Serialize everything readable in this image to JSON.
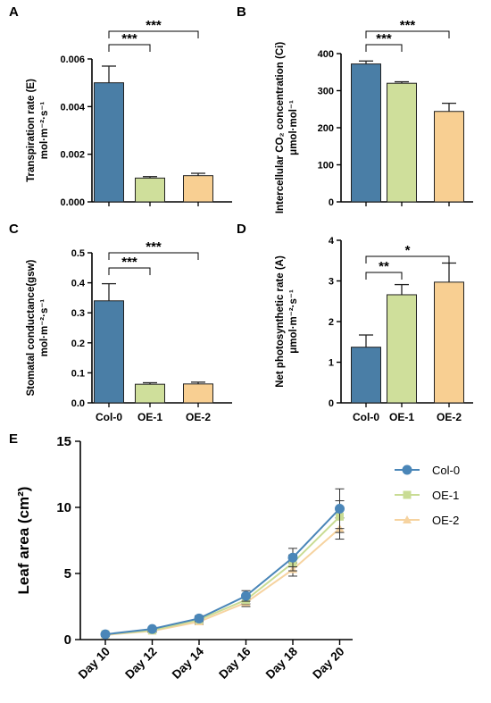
{
  "chart_data": [
    {
      "panel": "A",
      "type": "bar",
      "ylabel": "Transpiration rate (E)",
      "yunit": "mol·m⁻²·s⁻¹",
      "categories": [
        "Col-0",
        "OE-1",
        "OE-2"
      ],
      "values": [
        0.005,
        0.001,
        0.0011
      ],
      "errors": [
        0.0007,
        6e-05,
        0.0001
      ],
      "colors": [
        "#4a7ea6",
        "#cfdf9b",
        "#f8cf92"
      ],
      "ylim": [
        0,
        0.006
      ],
      "yticks": [
        0,
        0.002,
        0.004,
        0.006
      ],
      "ytick_labels": [
        "0.000",
        "0.002",
        "0.004",
        "0.006"
      ],
      "show_xlabels": false,
      "significance": [
        {
          "from": 0,
          "to": 1,
          "label": "***"
        },
        {
          "from": 0,
          "to": 2,
          "label": "***"
        }
      ]
    },
    {
      "panel": "B",
      "type": "bar",
      "ylabel": "Intercellular CO₂ concentration (Ci)",
      "yunit": "μmol·mol⁻¹",
      "categories": [
        "Col-0",
        "OE-1",
        "OE-2"
      ],
      "values": [
        372,
        320,
        244
      ],
      "errors": [
        8,
        4,
        22
      ],
      "colors": [
        "#4a7ea6",
        "#cfdf9b",
        "#f8cf92"
      ],
      "ylim": [
        0,
        400
      ],
      "yticks": [
        0,
        100,
        200,
        300,
        400
      ],
      "ytick_labels": [
        "0",
        "100",
        "200",
        "300",
        "400"
      ],
      "show_xlabels": false,
      "significance": [
        {
          "from": 0,
          "to": 1,
          "label": "***"
        },
        {
          "from": 0,
          "to": 2,
          "label": "***"
        }
      ]
    },
    {
      "panel": "C",
      "type": "bar",
      "ylabel": "Stomatal conductance(gsw)",
      "yunit": "mol·m⁻²·s⁻¹",
      "categories": [
        "Col-0",
        "OE-1",
        "OE-2"
      ],
      "values": [
        0.34,
        0.062,
        0.063
      ],
      "errors": [
        0.057,
        0.005,
        0.006
      ],
      "colors": [
        "#4a7ea6",
        "#cfdf9b",
        "#f8cf92"
      ],
      "ylim": [
        0,
        0.5
      ],
      "yticks": [
        0,
        0.1,
        0.2,
        0.3,
        0.4,
        0.5
      ],
      "ytick_labels": [
        "0.0",
        "0.1",
        "0.2",
        "0.3",
        "0.4",
        "0.5"
      ],
      "show_xlabels": true,
      "significance": [
        {
          "from": 0,
          "to": 1,
          "label": "***"
        },
        {
          "from": 0,
          "to": 2,
          "label": "***"
        }
      ]
    },
    {
      "panel": "D",
      "type": "bar",
      "ylabel": "Net photosynthetic rate (A)",
      "yunit": "μmol·m⁻²·s⁻¹",
      "categories": [
        "Col-0",
        "OE-1",
        "OE-2"
      ],
      "values": [
        1.37,
        2.66,
        2.97
      ],
      "errors": [
        0.3,
        0.25,
        0.47
      ],
      "colors": [
        "#4a7ea6",
        "#cfdf9b",
        "#f8cf92"
      ],
      "ylim": [
        0,
        4
      ],
      "yticks": [
        0,
        1,
        2,
        3,
        4
      ],
      "ytick_labels": [
        "0",
        "1",
        "2",
        "3",
        "4"
      ],
      "show_xlabels": true,
      "significance": [
        {
          "from": 0,
          "to": 1,
          "label": "**"
        },
        {
          "from": 0,
          "to": 2,
          "label": "*"
        }
      ]
    },
    {
      "panel": "E",
      "type": "line",
      "ylabel": "Leaf area (cm²)",
      "x": [
        "Day 10",
        "Day 12",
        "Day 14",
        "Day 16",
        "Day 18",
        "Day 20"
      ],
      "ylim": [
        0,
        15
      ],
      "yticks": [
        0,
        5,
        10,
        15
      ],
      "ytick_labels": [
        "0",
        "5",
        "10",
        "15"
      ],
      "series": [
        {
          "name": "Col-0",
          "color": "#4a86b8",
          "marker": "circle",
          "values": [
            0.4,
            0.8,
            1.6,
            3.3,
            6.2,
            9.9
          ],
          "errors": [
            0.1,
            0.1,
            0.2,
            0.4,
            0.7,
            1.5
          ]
        },
        {
          "name": "OE-1",
          "color": "#c9dc94",
          "marker": "square",
          "values": [
            0.4,
            0.7,
            1.5,
            3.0,
            5.8,
            9.3
          ],
          "errors": [
            0.1,
            0.1,
            0.2,
            0.3,
            0.6,
            1.2
          ]
        },
        {
          "name": "OE-2",
          "color": "#f6d3a0",
          "marker": "triangle",
          "values": [
            0.35,
            0.65,
            1.35,
            2.8,
            5.3,
            8.4
          ],
          "errors": [
            0.1,
            0.1,
            0.2,
            0.3,
            0.5,
            0.8
          ]
        }
      ],
      "legend": "top-right"
    }
  ]
}
